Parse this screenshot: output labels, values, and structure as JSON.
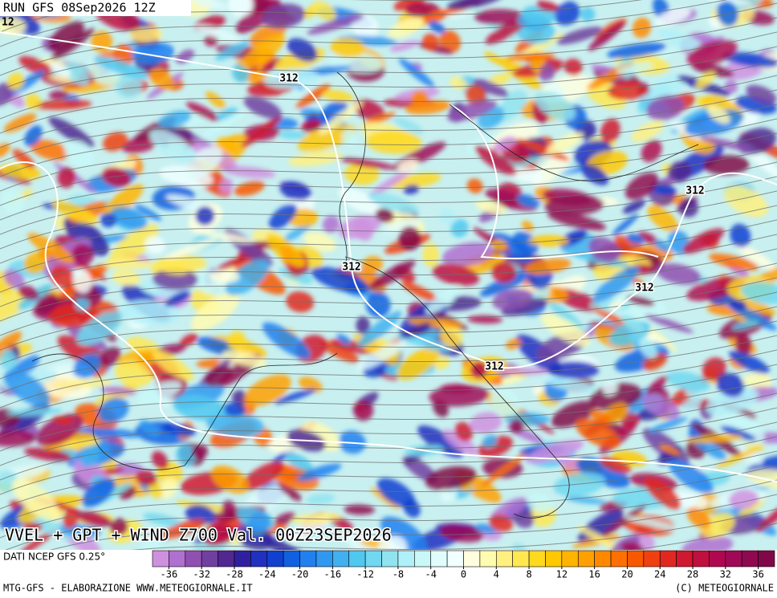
{
  "header": {
    "run": "RUN GFS 08Sep2026 12Z",
    "corner_label": "12"
  },
  "map": {
    "title": "VVEL + GPT + WIND Z700 Val. 00Z23SEP2026",
    "contour_labels": [
      "312",
      "312",
      "312",
      "312",
      "312"
    ]
  },
  "legend": {
    "source": "DATI NCEP GFS 0.25°",
    "range": [
      -38,
      38
    ],
    "colors": [
      "#d090e0",
      "#b070d0",
      "#9050b0",
      "#7040a0",
      "#502890",
      "#3020a0",
      "#2030c0",
      "#1040d0",
      "#1060e0",
      "#2080f0",
      "#3098f0",
      "#40b0f0",
      "#50c8f0",
      "#70d8f0",
      "#90e4f0",
      "#b0f0f8",
      "#c8f8f8",
      "#e0fcfc",
      "#f0ffff",
      "#ffffe0",
      "#fffcb0",
      "#fff080",
      "#ffe850",
      "#ffd820",
      "#ffc800",
      "#ffb400",
      "#ffa000",
      "#ff8800",
      "#ff7000",
      "#f85800",
      "#f04010",
      "#e02820",
      "#d01830",
      "#c01040",
      "#b00850",
      "#a00858",
      "#900850",
      "#800848"
    ],
    "ticks": [
      -36,
      -32,
      -28,
      -24,
      -20,
      -16,
      -12,
      -8,
      -4,
      0,
      4,
      8,
      12,
      16,
      20,
      24,
      28,
      32,
      36
    ]
  },
  "footer": {
    "credit": "MTG-GFS - ELABORAZIONE WWW.METEOGIORNALE.IT",
    "copyright": "(C) METEOGIORNALE"
  }
}
